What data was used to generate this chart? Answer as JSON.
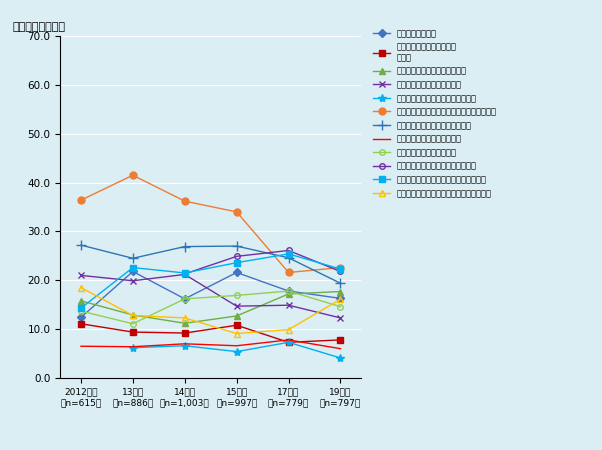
{
  "title": "（複数回答、％）",
  "ylim": [
    0.0,
    70.0
  ],
  "yticks": [
    0.0,
    10.0,
    20.0,
    30.0,
    40.0,
    50.0,
    60.0,
    70.0
  ],
  "x_labels": [
    "2012年度\n（n=615）",
    "13年度\n（n=886）",
    "14年度\n（n=1,003）",
    "15年度\n（n=997）",
    "17年度\n（n=779）",
    "19年度\n（n=797）"
  ],
  "background_color": "#daeef3",
  "series": [
    {
      "name": "為替リスクが高い",
      "values": [
        12.4,
        21.8,
        16.2,
        21.6,
        17.8,
        16.3
      ],
      "color": "#4472c4",
      "marker": "D",
      "markersize": 4,
      "linestyle": "-"
    },
    {
      "name": "関連産業が集積・発展して\nいない",
      "values": [
        11.1,
        9.4,
        9.2,
        10.8,
        7.3,
        7.8
      ],
      "color": "#c00000",
      "marker": "s",
      "markersize": 4,
      "linestyle": "-"
    },
    {
      "name": "代金回収上のリスク・問題あり",
      "values": [
        15.8,
        12.9,
        11.2,
        12.7,
        17.2,
        17.7
      ],
      "color": "#70ad47",
      "marker": "^",
      "markersize": 4,
      "linestyle": "-"
    },
    {
      "name": "人件費が高い、上昇している",
      "values": [
        21.0,
        19.9,
        21.2,
        14.7,
        14.9,
        12.3
      ],
      "color": "#7030a0",
      "marker": "x",
      "markersize": 5,
      "linestyle": "-"
    },
    {
      "name": "労働力の不足・適切な人材の採用難",
      "values": [
        null,
        6.2,
        6.6,
        5.4,
        7.3,
        4.1
      ],
      "color": "#00b0f0",
      "marker": "*",
      "markersize": 6,
      "linestyle": "-"
    },
    {
      "name": "インフラ（電力、運輸、通信など）が未整備",
      "values": [
        36.4,
        41.5,
        36.2,
        34.0,
        21.6,
        22.6
      ],
      "color": "#ed7d31",
      "marker": "o",
      "markersize": 5,
      "linestyle": "-"
    },
    {
      "name": "法制度が未整備、運用に問題あり",
      "values": [
        27.2,
        24.5,
        26.9,
        27.0,
        24.6,
        19.4
      ],
      "color": "#2e75b6",
      "marker": "+",
      "markersize": 7,
      "linestyle": "-"
    },
    {
      "name": "知的財産権の保護に問題あり",
      "values": [
        6.5,
        6.4,
        7.0,
        6.6,
        7.8,
        6.0
      ],
      "color": "#ff0000",
      "marker": "None",
      "markersize": 4,
      "linestyle": "-"
    },
    {
      "name": "税制・税務手続きの煩雑さ",
      "values": [
        13.7,
        11.1,
        16.2,
        16.9,
        17.8,
        14.6
      ],
      "color": "#92d050",
      "marker": "o",
      "markersize": 4,
      "linestyle": "-",
      "markerfacecolor": "none"
    },
    {
      "name": "行政手続きの煩雑さ（許認可など）",
      "values": [
        null,
        null,
        21.3,
        24.9,
        26.1,
        21.8
      ],
      "color": "#7030a0",
      "marker": "o",
      "markersize": 4,
      "linestyle": "-",
      "markerfacecolor": "none"
    },
    {
      "name": "政情リスクや社会情勢・治安に問題あり",
      "values": [
        14.3,
        22.6,
        21.5,
        23.6,
        25.4,
        22.3
      ],
      "color": "#00b0f0",
      "marker": "s",
      "markersize": 4,
      "linestyle": "-"
    },
    {
      "name": "自然災害リスクまたは環境汚染に問題あり",
      "values": [
        18.5,
        12.8,
        12.3,
        9.1,
        9.9,
        16.1
      ],
      "color": "#ffc000",
      "marker": "^",
      "markersize": 4,
      "linestyle": "-",
      "markerfacecolor": "none"
    }
  ]
}
